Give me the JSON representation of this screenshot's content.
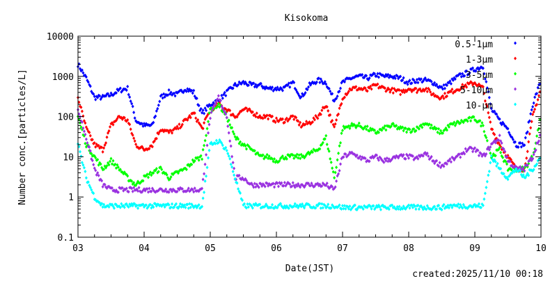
{
  "chart_data": {
    "type": "scatter",
    "title": "Kisokoma",
    "xlabel": "Date(JST)",
    "ylabel": "Number conc.[particles/L]",
    "footer": "created:2025/11/10 00:18",
    "yscale": "log",
    "ylim": [
      0.1,
      10000
    ],
    "yticks": [
      {
        "v": 10000,
        "label": "10000"
      },
      {
        "v": 1000,
        "label": "1000"
      },
      {
        "v": 100,
        "label": "100"
      },
      {
        "v": 10,
        "label": "10"
      },
      {
        "v": 1,
        "label": "1"
      },
      {
        "v": 0.1,
        "label": "0.1"
      }
    ],
    "xlim": [
      3,
      10
    ],
    "xticks": [
      {
        "v": 3,
        "label": "03"
      },
      {
        "v": 4,
        "label": "04"
      },
      {
        "v": 5,
        "label": "05"
      },
      {
        "v": 6,
        "label": "06"
      },
      {
        "v": 7,
        "label": "07"
      },
      {
        "v": 8,
        "label": "08"
      },
      {
        "v": 9,
        "label": "09"
      },
      {
        "v": 10,
        "label": "10"
      }
    ],
    "x_start": 3,
    "x_step": 0.125,
    "legend_position": "top-right",
    "series": [
      {
        "name": "0.5-1μm",
        "color": "#0000ff",
        "values": [
          2000,
          900,
          300,
          300,
          350,
          450,
          500,
          80,
          60,
          60,
          300,
          400,
          350,
          500,
          400,
          120,
          200,
          250,
          400,
          600,
          700,
          600,
          600,
          500,
          500,
          500,
          700,
          300,
          600,
          800,
          700,
          250,
          700,
          900,
          1000,
          900,
          1100,
          1000,
          1000,
          900,
          700,
          800,
          800,
          700,
          500,
          700,
          1000,
          1200,
          1500,
          1800,
          150,
          80,
          50,
          20,
          20,
          200,
          800
        ]
      },
      {
        "name": "1-3μm",
        "color": "#ff0000",
        "values": [
          300,
          50,
          20,
          15,
          60,
          100,
          80,
          20,
          15,
          20,
          50,
          40,
          50,
          80,
          120,
          50,
          150,
          200,
          150,
          100,
          150,
          130,
          100,
          100,
          80,
          80,
          100,
          60,
          70,
          100,
          200,
          50,
          300,
          500,
          500,
          450,
          600,
          500,
          450,
          400,
          500,
          450,
          500,
          350,
          300,
          400,
          500,
          600,
          700,
          500,
          50,
          20,
          10,
          5,
          5,
          100,
          500
        ]
      },
      {
        "name": "3-5μm",
        "color": "#00ff00",
        "values": [
          100,
          20,
          10,
          5,
          8,
          5,
          3,
          2,
          3,
          4,
          5,
          3,
          4,
          5,
          8,
          10,
          150,
          200,
          100,
          30,
          20,
          15,
          10,
          10,
          8,
          10,
          10,
          10,
          12,
          15,
          30,
          3,
          50,
          60,
          60,
          50,
          40,
          50,
          60,
          50,
          45,
          50,
          70,
          50,
          40,
          60,
          70,
          80,
          90,
          60,
          10,
          15,
          5,
          5,
          5,
          10,
          100
        ]
      },
      {
        "name": "5-10μm",
        "color": "#9a32e0",
        "values": [
          150,
          30,
          5,
          2,
          1.5,
          1.5,
          1.5,
          1.5,
          1.5,
          1.5,
          1.5,
          1.5,
          1.5,
          1.5,
          1.5,
          1.5,
          100,
          300,
          100,
          3,
          3,
          2,
          2,
          2,
          2,
          2,
          2,
          2,
          2,
          2,
          2,
          1.5,
          10,
          12,
          10,
          8,
          10,
          8,
          9,
          10,
          10,
          9,
          12,
          8,
          6,
          8,
          10,
          15,
          15,
          10,
          20,
          30,
          8,
          5,
          5,
          10,
          40
        ]
      },
      {
        "name": "10-μm",
        "color": "#00ffff",
        "values": [
          20,
          3,
          1,
          0.6,
          0.6,
          0.6,
          0.6,
          0.6,
          0.6,
          0.6,
          0.6,
          0.6,
          0.6,
          0.6,
          0.6,
          0.6,
          20,
          25,
          15,
          3,
          0.6,
          0.6,
          0.6,
          0.6,
          0.6,
          0.6,
          0.6,
          0.6,
          0.6,
          0.6,
          0.6,
          0.6,
          0.55,
          0.55,
          0.55,
          0.55,
          0.55,
          0.55,
          0.55,
          0.55,
          0.55,
          0.55,
          0.55,
          0.55,
          0.55,
          0.6,
          0.6,
          0.6,
          0.6,
          0.6,
          10,
          5,
          3,
          5,
          3,
          5,
          10
        ]
      }
    ]
  }
}
